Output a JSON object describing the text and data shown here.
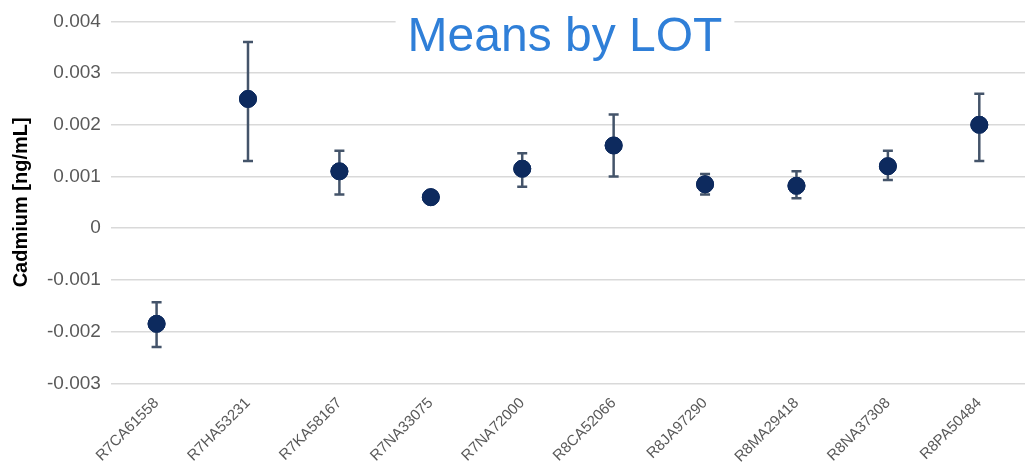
{
  "chart_data": {
    "type": "scatter",
    "title": "Means by LOT",
    "ylabel": "Cadmium [ng/mL]",
    "categories": [
      "R7CA61558",
      "R7HA53231",
      "R7KA58167",
      "R7NA33075",
      "R7NA72000",
      "R8CA52066",
      "R8JA97290",
      "R8MA29418",
      "R8NA37308",
      "R8PA50484"
    ],
    "series": [
      {
        "color": "#0d2a5e",
        "values": [
          -0.00185,
          0.0025,
          0.0011,
          0.0006,
          0.00115,
          0.0016,
          0.00085,
          0.00082,
          0.0012,
          0.002
        ],
        "errors": [
          [
            -0.0023,
            -0.00143
          ],
          [
            0.0013,
            0.0036
          ],
          [
            0.00065,
            0.0015
          ],
          null,
          [
            0.0008,
            0.00145
          ],
          [
            0.001,
            0.0022
          ],
          [
            0.00065,
            0.00105
          ],
          [
            0.00058,
            0.0011
          ],
          [
            0.00093,
            0.0015
          ],
          [
            0.0013,
            0.0026
          ]
        ]
      }
    ],
    "ylim": [
      -0.003,
      0.004
    ],
    "yticks": [
      -0.003,
      -0.002,
      -0.001,
      0,
      0.001,
      0.002,
      0.003,
      0.004
    ],
    "grid": "y",
    "marker": "circle",
    "legend": false
  }
}
